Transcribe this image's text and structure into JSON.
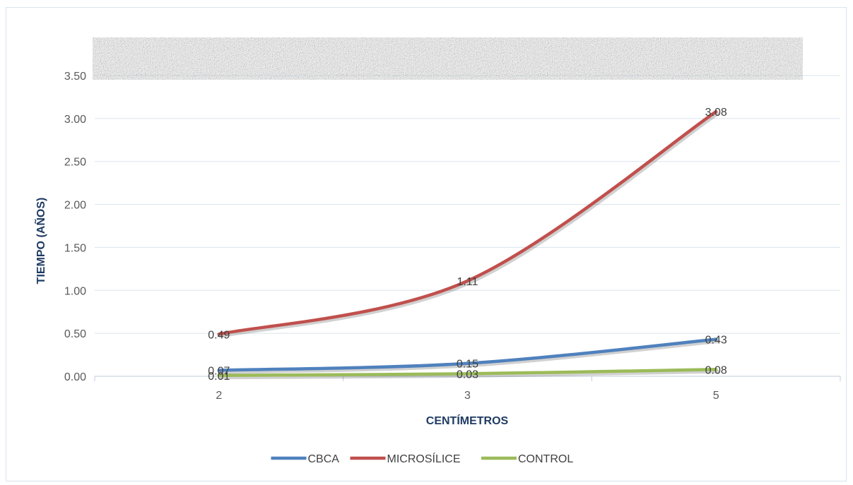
{
  "chart_data": {
    "type": "line",
    "title": "",
    "xlabel": "CENTÍMETROS",
    "ylabel": "TIEMPO (AÑOS)",
    "categories": [
      "2",
      "3",
      "5"
    ],
    "ylim": [
      0,
      3.5
    ],
    "yticks": [
      "0.00",
      "0.50",
      "1.00",
      "1.50",
      "2.00",
      "2.50",
      "3.00",
      "3.50"
    ],
    "grid": true,
    "legend_position": "bottom",
    "series": [
      {
        "name": "CBCA",
        "color": "#4f81bd",
        "values": [
          0.07,
          0.15,
          0.43
        ],
        "labels": [
          "0.07",
          "0.15",
          "0.43"
        ]
      },
      {
        "name": "MICROSÍLICE",
        "color": "#c0504d",
        "values": [
          0.49,
          1.11,
          3.08
        ],
        "labels": [
          "0.49",
          "1.11",
          "3.08"
        ]
      },
      {
        "name": "CONTROL",
        "color": "#9bbb59",
        "values": [
          0.01,
          0.03,
          0.08
        ],
        "labels": [
          "0.01",
          "0.03",
          "0.08"
        ]
      }
    ]
  }
}
